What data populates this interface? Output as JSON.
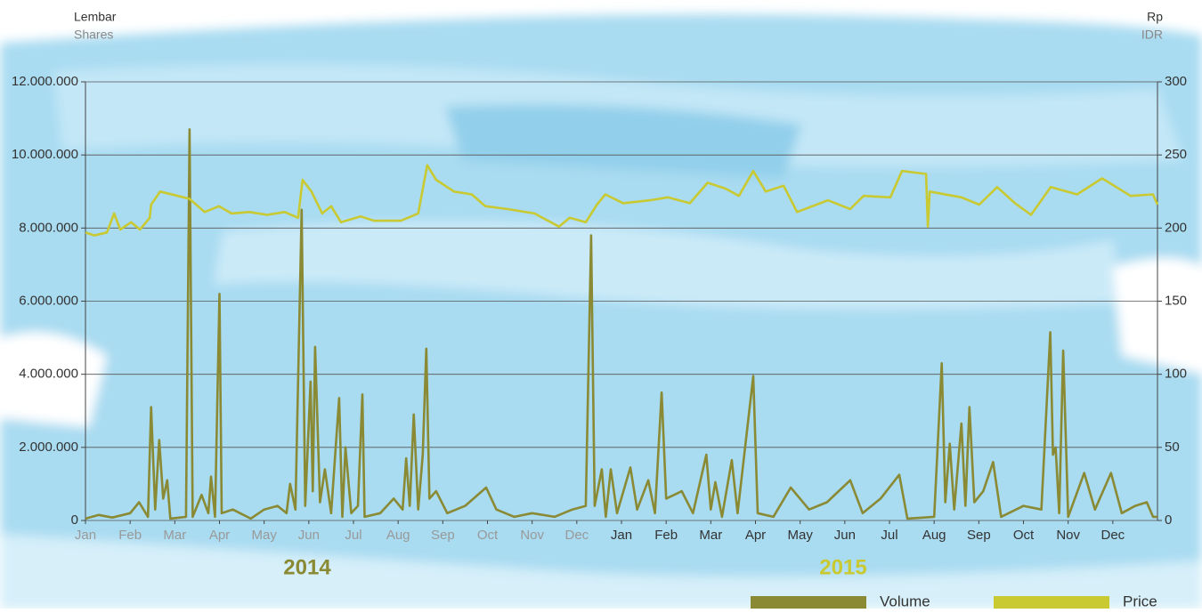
{
  "chart_data": {
    "type": "line",
    "left_unit": "Lembar",
    "left_unit_en": "Shares",
    "right_unit": "Rp",
    "right_unit_en": "IDR",
    "year_labels": [
      "2014",
      "2015"
    ],
    "xlim": [
      0,
      24
    ],
    "xticks": [
      {
        "value": 0,
        "label": "Jan"
      },
      {
        "value": 1,
        "label": "Feb"
      },
      {
        "value": 2,
        "label": "Mar"
      },
      {
        "value": 3,
        "label": "Apr"
      },
      {
        "value": 4,
        "label": "May"
      },
      {
        "value": 5,
        "label": "Jun"
      },
      {
        "value": 6,
        "label": "Jul"
      },
      {
        "value": 7,
        "label": "Aug"
      },
      {
        "value": 8,
        "label": "Sep"
      },
      {
        "value": 9,
        "label": "Oct"
      },
      {
        "value": 10,
        "label": "Nov"
      },
      {
        "value": 11,
        "label": "Dec"
      },
      {
        "value": 12,
        "label": "Jan"
      },
      {
        "value": 13,
        "label": "Feb"
      },
      {
        "value": 14,
        "label": "Mar"
      },
      {
        "value": 15,
        "label": "Apr"
      },
      {
        "value": 16,
        "label": "May"
      },
      {
        "value": 17,
        "label": "Jun"
      },
      {
        "value": 18,
        "label": "Jul"
      },
      {
        "value": 19,
        "label": "Aug"
      },
      {
        "value": 20,
        "label": "Sep"
      },
      {
        "value": 21,
        "label": "Oct"
      },
      {
        "value": 22,
        "label": "Nov"
      },
      {
        "value": 23,
        "label": "Dec"
      }
    ],
    "ylim": [
      0,
      12000000
    ],
    "yticks": [
      0,
      {
        "value": 2000000,
        "label": "2.000.000"
      },
      {
        "value": 4000000,
        "label": "4.000.000"
      },
      {
        "value": 6000000,
        "label": "6.000.000"
      },
      {
        "value": 8000000,
        "label": "8.000.000"
      },
      {
        "value": 10000000,
        "label": "10.000.000"
      },
      {
        "value": 12000000,
        "label": "12.000.000"
      }
    ],
    "y2lim": [
      0,
      300
    ],
    "y2ticks": [
      0,
      50,
      100,
      150,
      200,
      250,
      300
    ],
    "grid": true,
    "series": [
      {
        "name": "Volume",
        "color": "#8a8a34",
        "x": [
          0,
          0.3,
          0.6,
          1.0,
          1.2,
          1.4,
          1.47,
          1.56,
          1.65,
          1.74,
          1.83,
          1.9,
          2.25,
          2.33,
          2.4,
          2.6,
          2.75,
          2.81,
          2.9,
          3.0,
          3.05,
          3.3,
          3.7,
          4.0,
          4.3,
          4.5,
          4.58,
          4.7,
          4.84,
          4.92,
          5.04,
          5.09,
          5.14,
          5.25,
          5.36,
          5.5,
          5.68,
          5.75,
          5.82,
          5.95,
          6.1,
          6.2,
          6.25,
          6.6,
          6.9,
          7.1,
          7.18,
          7.26,
          7.35,
          7.45,
          7.55,
          7.63,
          7.7,
          7.85,
          8.1,
          8.5,
          8.97,
          9.2,
          9.6,
          10.0,
          10.5,
          10.9,
          11.2,
          11.32,
          11.4,
          11.56,
          11.65,
          11.76,
          11.9,
          12.2,
          12.35,
          12.6,
          12.75,
          12.9,
          13.0,
          13.35,
          13.6,
          13.9,
          14.0,
          14.1,
          14.25,
          14.47,
          14.6,
          14.95,
          15.05,
          15.4,
          15.79,
          16.2,
          16.6,
          17.12,
          17.4,
          17.8,
          18.22,
          18.4,
          19.0,
          19.17,
          19.25,
          19.35,
          19.45,
          19.61,
          19.7,
          19.79,
          19.9,
          20.1,
          20.32,
          20.5,
          21.0,
          21.4,
          21.6,
          21.66,
          21.72,
          21.8,
          21.89,
          22.0,
          22.36,
          22.6,
          22.96,
          23.2,
          23.5,
          23.76,
          23.9,
          24
        ],
        "values": [
          50000,
          150000,
          80000,
          200000,
          500000,
          100000,
          3100000,
          300000,
          2200000,
          600000,
          1100000,
          50000,
          100000,
          10700000,
          100000,
          700000,
          200000,
          1200000,
          100000,
          6200000,
          200000,
          300000,
          50000,
          300000,
          400000,
          200000,
          1000000,
          300000,
          8500000,
          400000,
          3800000,
          800000,
          4750000,
          500000,
          1400000,
          200000,
          3350000,
          100000,
          2000000,
          200000,
          400000,
          3450000,
          100000,
          200000,
          600000,
          300000,
          1700000,
          400000,
          2900000,
          300000,
          1800000,
          4700000,
          600000,
          800000,
          200000,
          400000,
          900000,
          300000,
          100000,
          200000,
          100000,
          300000,
          400000,
          7800000,
          400000,
          1400000,
          100000,
          1400000,
          200000,
          1450000,
          300000,
          1100000,
          200000,
          3500000,
          600000,
          800000,
          200000,
          1800000,
          300000,
          1050000,
          100000,
          1650000,
          200000,
          3950000,
          200000,
          100000,
          900000,
          300000,
          500000,
          1100000,
          200000,
          600000,
          1250000,
          50000,
          100000,
          4300000,
          500000,
          2100000,
          300000,
          2650000,
          400000,
          3100000,
          500000,
          800000,
          1600000,
          100000,
          400000,
          300000,
          5150000,
          1800000,
          2000000,
          200000,
          4650000,
          100000,
          1300000,
          300000,
          1300000,
          200000,
          400000,
          500000,
          100000,
          100000
        ]
      },
      {
        "name": "Price",
        "color": "#c9c932",
        "axis": "y2",
        "x": [
          0,
          0.2,
          0.48,
          0.64,
          0.78,
          1.02,
          1.22,
          1.44,
          1.47,
          1.67,
          2.07,
          2.33,
          2.67,
          2.99,
          3.27,
          3.67,
          4.07,
          4.46,
          4.76,
          4.86,
          5.06,
          5.3,
          5.5,
          5.72,
          6.16,
          6.46,
          7.06,
          7.45,
          7.65,
          7.85,
          8.25,
          8.65,
          8.95,
          9.45,
          10.05,
          10.6,
          10.84,
          11.2,
          11.45,
          11.64,
          12.04,
          12.64,
          13.04,
          13.53,
          13.93,
          14.33,
          14.63,
          14.95,
          15.23,
          15.63,
          15.93,
          16.62,
          17.12,
          17.42,
          18.02,
          18.28,
          18.82,
          18.86,
          18.9,
          19.61,
          20.01,
          20.41,
          20.81,
          21.17,
          21.61,
          22.2,
          22.76,
          23.4,
          23.9,
          24
        ],
        "values": [
          197,
          195,
          197,
          210,
          199,
          204,
          199,
          207,
          216,
          225,
          222,
          220,
          211,
          215,
          210,
          211,
          209,
          211,
          207,
          233,
          225,
          210,
          215,
          204,
          208,
          205,
          205,
          210,
          243,
          233,
          225,
          223,
          215,
          213,
          210,
          201,
          207,
          204,
          216,
          223,
          217,
          219,
          221,
          217,
          231,
          227,
          222,
          239,
          225,
          229,
          211,
          219,
          213,
          222,
          221,
          239,
          237,
          201,
          225,
          221,
          216,
          228,
          217,
          209,
          228,
          223,
          234,
          222,
          223,
          216
        ]
      }
    ]
  }
}
